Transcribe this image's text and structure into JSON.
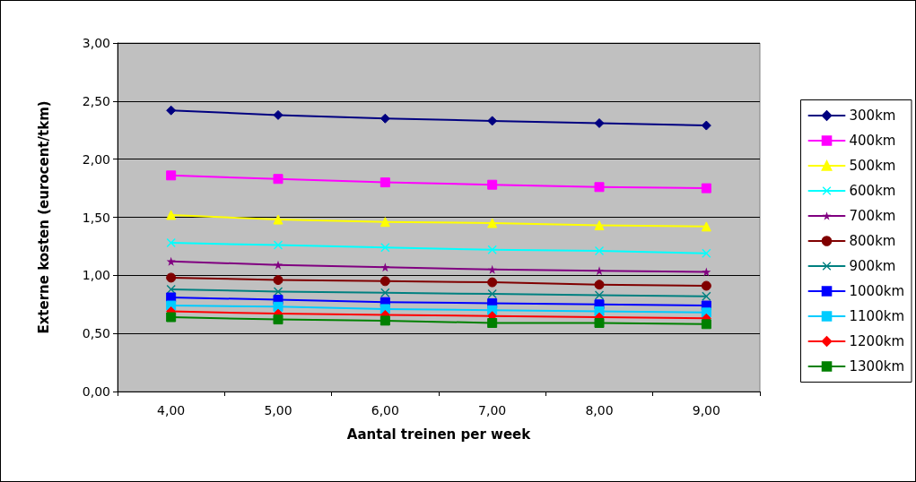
{
  "chart_data": {
    "type": "line",
    "xlabel": "Aantal treinen per week",
    "ylabel": "Externe kosten (eurocent/tkm)",
    "categories": [
      "4,00",
      "5,00",
      "6,00",
      "7,00",
      "8,00",
      "9,00"
    ],
    "ylim": [
      0,
      3
    ],
    "yticks": [
      {
        "value": 0,
        "label": "0,00"
      },
      {
        "value": 0.5,
        "label": "0,50"
      },
      {
        "value": 1,
        "label": "1,00"
      },
      {
        "value": 1.5,
        "label": "1,50"
      },
      {
        "value": 2,
        "label": "2,00"
      },
      {
        "value": 2.5,
        "label": "2,50"
      },
      {
        "value": 3,
        "label": "3,00"
      }
    ],
    "grid": "y",
    "legend": "right",
    "line_style": "solid",
    "series": [
      {
        "name": "300km",
        "color": "#000080",
        "marker": "diamond",
        "values": [
          2.42,
          2.38,
          2.35,
          2.33,
          2.31,
          2.29
        ]
      },
      {
        "name": "400km",
        "color": "#ff00ff",
        "marker": "square",
        "values": [
          1.86,
          1.83,
          1.8,
          1.78,
          1.76,
          1.75
        ]
      },
      {
        "name": "500km",
        "color": "#ffff00",
        "marker": "triangle",
        "values": [
          1.52,
          1.48,
          1.46,
          1.45,
          1.43,
          1.42
        ]
      },
      {
        "name": "600km",
        "color": "#00ffff",
        "marker": "cross",
        "values": [
          1.28,
          1.26,
          1.24,
          1.22,
          1.21,
          1.19
        ]
      },
      {
        "name": "700km",
        "color": "#800080",
        "marker": "star",
        "values": [
          1.12,
          1.09,
          1.07,
          1.05,
          1.04,
          1.03
        ]
      },
      {
        "name": "800km",
        "color": "#800000",
        "marker": "circle",
        "values": [
          0.98,
          0.96,
          0.95,
          0.94,
          0.92,
          0.91
        ]
      },
      {
        "name": "900km",
        "color": "#008080",
        "marker": "cross",
        "values": [
          0.88,
          0.86,
          0.85,
          0.84,
          0.83,
          0.82
        ]
      },
      {
        "name": "1000km",
        "color": "#0000ff",
        "marker": "square",
        "values": [
          0.81,
          0.79,
          0.77,
          0.76,
          0.75,
          0.74
        ]
      },
      {
        "name": "1100km",
        "color": "#00ccff",
        "marker": "square",
        "values": [
          0.74,
          0.73,
          0.71,
          0.7,
          0.69,
          0.68
        ]
      },
      {
        "name": "1200km",
        "color": "#ff0000",
        "marker": "diamond",
        "values": [
          0.69,
          0.67,
          0.66,
          0.65,
          0.64,
          0.63
        ]
      },
      {
        "name": "1300km",
        "color": "#008000",
        "marker": "square",
        "values": [
          0.64,
          0.62,
          0.61,
          0.59,
          0.59,
          0.58
        ]
      }
    ]
  }
}
